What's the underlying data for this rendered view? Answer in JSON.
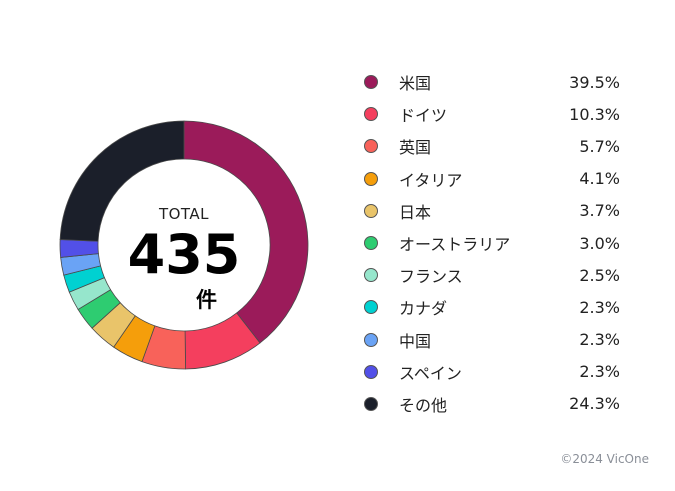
{
  "center": {
    "label": "TOTAL",
    "value": "435",
    "unit": "件"
  },
  "copyright": "©2024 VicOne",
  "chart_data": {
    "type": "pie",
    "subtype": "donut",
    "total": 435,
    "categories": [
      "米国",
      "ドイツ",
      "英国",
      "イタリア",
      "日本",
      "オーストラリア",
      "フランス",
      "カナダ",
      "中国",
      "スペイン",
      "その他"
    ],
    "values": [
      39.5,
      10.3,
      5.7,
      4.1,
      3.7,
      3.0,
      2.5,
      2.3,
      2.3,
      2.3,
      24.3
    ],
    "labels": [
      "39.5%",
      "10.3%",
      "5.7%",
      "4.1%",
      "3.7%",
      "3.0%",
      "2.5%",
      "2.3%",
      "2.3%",
      "2.3%",
      "24.3%"
    ],
    "colors": [
      "#9b1b5a",
      "#f43f5e",
      "#f8625a",
      "#f59e0b",
      "#e9c46a",
      "#2ecc71",
      "#96e6cc",
      "#00d1d1",
      "#6aa3f5",
      "#5250e8",
      "#1b1f2a"
    ],
    "legend_position": "right"
  }
}
